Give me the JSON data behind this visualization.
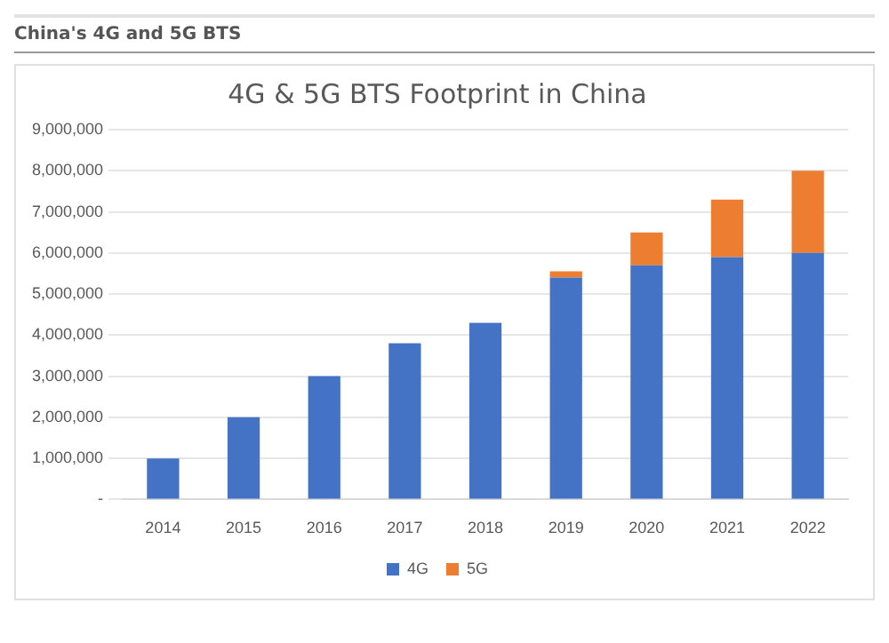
{
  "chart_data": {
    "type": "bar",
    "title": "4G & 5G BTS Footprint in China",
    "annotations": [
      "China's 4G and 5G BTS"
    ],
    "categories": [
      "2014",
      "2015",
      "2016",
      "2017",
      "2018",
      "2019",
      "2020",
      "2021",
      "2022"
    ],
    "series": [
      {
        "name": "4G",
        "color": "#4472c4",
        "values": [
          1000000,
          2000000,
          3000000,
          3800000,
          4300000,
          5400000,
          5700000,
          5900000,
          6000000
        ]
      },
      {
        "name": "5G",
        "color": "#ed7d31",
        "values": [
          0,
          0,
          0,
          0,
          0,
          150000,
          800000,
          1400000,
          2000000
        ]
      }
    ],
    "stacked": true,
    "ylim": [
      0,
      9000000
    ],
    "yticks": [
      {
        "value": 0,
        "label": "-"
      },
      {
        "value": 1000000,
        "label": "1,000,000"
      },
      {
        "value": 2000000,
        "label": "2,000,000"
      },
      {
        "value": 3000000,
        "label": "3,000,000"
      },
      {
        "value": 4000000,
        "label": "4,000,000"
      },
      {
        "value": 5000000,
        "label": "5,000,000"
      },
      {
        "value": 6000000,
        "label": "6,000,000"
      },
      {
        "value": 7000000,
        "label": "7,000,000"
      },
      {
        "value": 8000000,
        "label": "8,000,000"
      },
      {
        "value": 9000000,
        "label": "9,000,000"
      }
    ],
    "grid": "y",
    "legend": "bottom"
  }
}
